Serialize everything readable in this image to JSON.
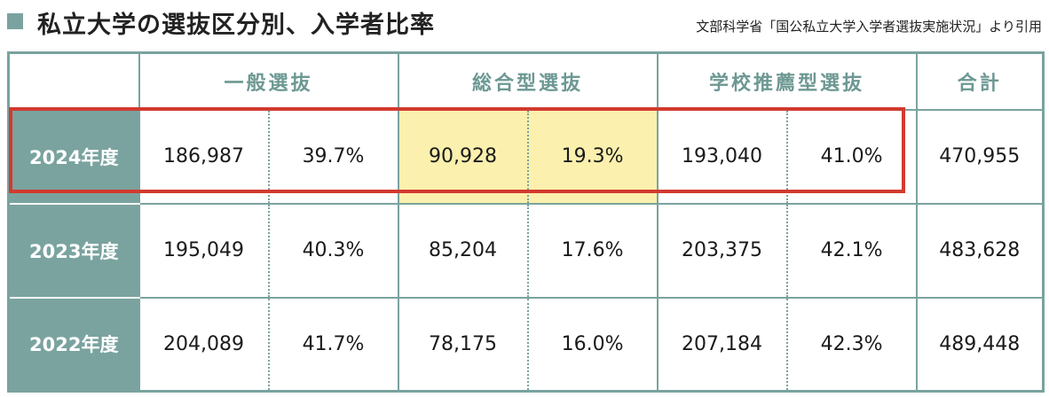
{
  "header": {
    "title": "私立大学の選抜区分別、入学者比率",
    "source": "文部科学省「国公私立大学入学者選抜実施状況」より引用"
  },
  "colors": {
    "accent": "#7aa39f",
    "highlight_fill": "#fbf0ad",
    "highlight_border": "#d23a2f"
  },
  "highlight": {
    "row": "2024年度",
    "cells": [
      "総合型選抜"
    ]
  },
  "chart_data": {
    "type": "table",
    "columns": [
      "一般選抜",
      "総合型選抜",
      "学校推薦型選抜",
      "合計"
    ],
    "rows": [
      {
        "year": "2024年度",
        "general_count": "186,987",
        "general_pct": "39.7%",
        "ao_count": "90,928",
        "ao_pct": "19.3%",
        "rec_count": "193,040",
        "rec_pct": "41.0%",
        "total": "470,955"
      },
      {
        "year": "2023年度",
        "general_count": "195,049",
        "general_pct": "40.3%",
        "ao_count": "85,204",
        "ao_pct": "17.6%",
        "rec_count": "203,375",
        "rec_pct": "42.1%",
        "total": "483,628"
      },
      {
        "year": "2022年度",
        "general_count": "204,089",
        "general_pct": "41.7%",
        "ao_count": "78,175",
        "ao_pct": "16.0%",
        "rec_count": "207,184",
        "rec_pct": "42.3%",
        "total": "489,448"
      }
    ]
  }
}
